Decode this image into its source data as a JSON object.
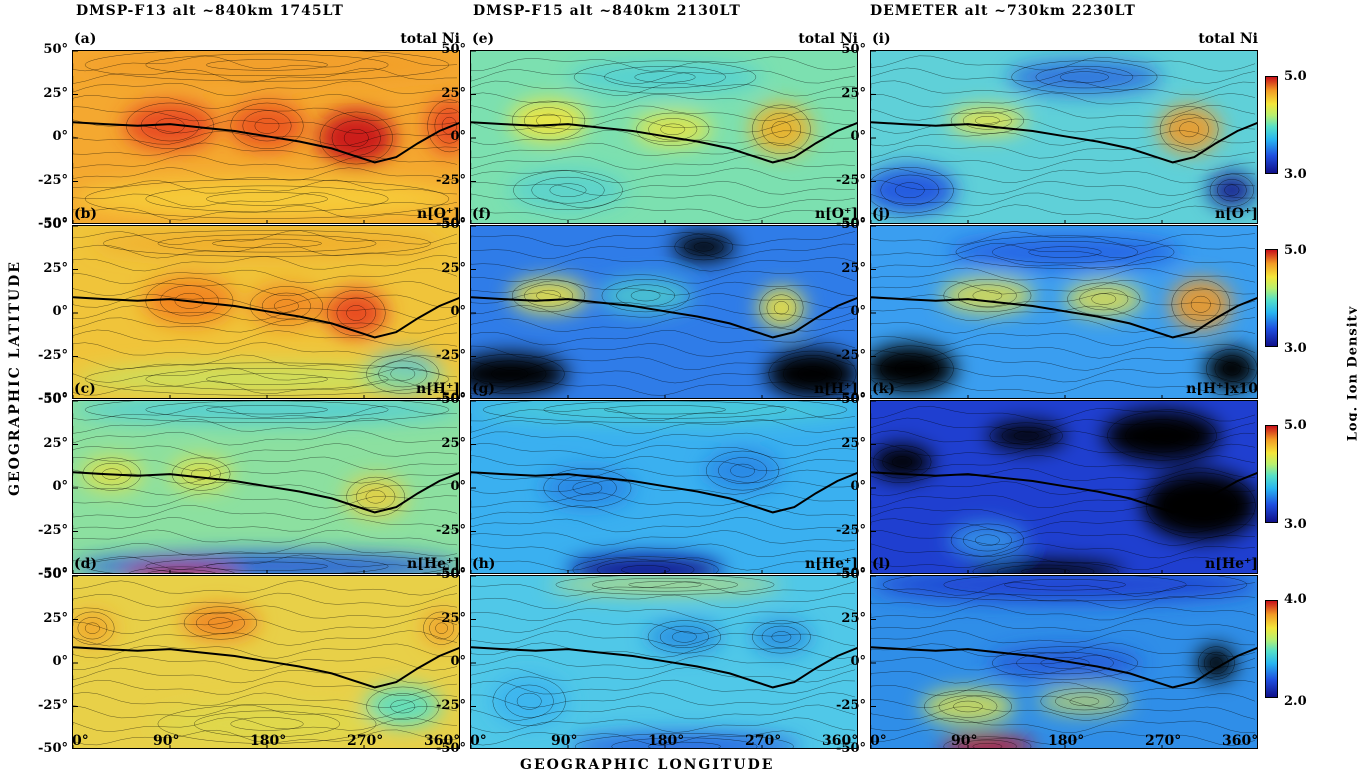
{
  "column_titles": [
    "DMSP-F13   alt ~840km   1745LT",
    "DMSP-F15   alt ~840km   2130LT",
    "DEMETER   alt ~730km  2230LT"
  ],
  "panels": [
    {
      "letter": "(a)",
      "label": "total Ni"
    },
    {
      "letter": "(e)",
      "label": "total Ni"
    },
    {
      "letter": "(i)",
      "label": "total Ni"
    },
    {
      "letter": "(b)",
      "label": "n[O⁺]"
    },
    {
      "letter": "(f)",
      "label": "n[O⁺]"
    },
    {
      "letter": "(j)",
      "label": "n[O⁺]"
    },
    {
      "letter": "(c)",
      "label": "n[H⁺]"
    },
    {
      "letter": "(g)",
      "label": "n[H⁺]"
    },
    {
      "letter": "(k)",
      "label": "n[H⁺]x10"
    },
    {
      "letter": "(d)",
      "label": "n[He⁺]"
    },
    {
      "letter": "(h)",
      "label": "n[He⁺]"
    },
    {
      "letter": "(l)",
      "label": "n[He⁺]"
    }
  ],
  "y_ticks": [
    "50°",
    "25°",
    "0°",
    "-25°",
    "-50°"
  ],
  "x_ticks": [
    "0°",
    "90°",
    "180°",
    "270°",
    "360°"
  ],
  "x_axis_title": "GEOGRAPHIC  LONGITUDE",
  "y_axis_title": "GEOGRAPHIC  LATITUDE",
  "colorbar_title": "Log. Ion Density",
  "colorbars": [
    {
      "max": "5.0",
      "min": "3.0"
    },
    {
      "max": "5.0",
      "min": "3.0"
    },
    {
      "max": "5.0",
      "min": "3.0"
    },
    {
      "max": "4.0",
      "min": "2.0"
    }
  ],
  "colors": {
    "low": "#10108a",
    "mid_low": "#29b6f0",
    "mid": "#b8f070",
    "mid_high": "#f4e63a",
    "high": "#f29a24",
    "max": "#c8101a",
    "no_data": "#000000"
  }
}
